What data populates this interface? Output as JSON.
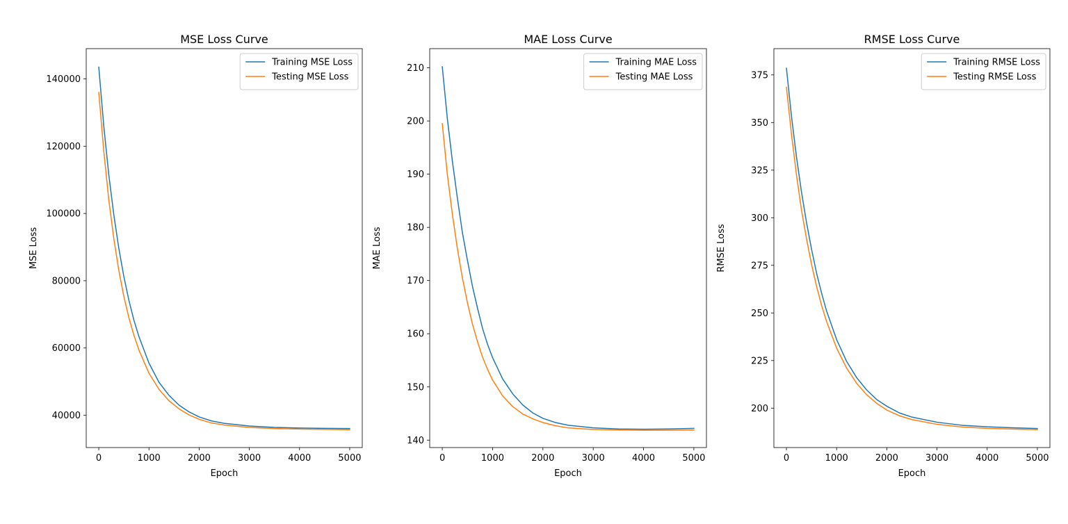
{
  "chart_data": [
    {
      "type": "line",
      "title": "MSE Loss Curve",
      "xlabel": "Epoch",
      "ylabel": "MSE Loss",
      "xlim": [
        -250,
        5250
      ],
      "ylim": [
        30400,
        149000
      ],
      "xticks": [
        0,
        1000,
        2000,
        3000,
        4000,
        5000
      ],
      "yticks": [
        40000,
        60000,
        80000,
        100000,
        120000,
        140000
      ],
      "legend": "top-right",
      "series": [
        {
          "name": "Training MSE Loss",
          "color": "#1f77b4",
          "x": [
            0,
            100,
            200,
            300,
            400,
            500,
            600,
            700,
            800,
            1000,
            1200,
            1400,
            1600,
            1800,
            2000,
            2250,
            2500,
            3000,
            3500,
            4000,
            4500,
            5000
          ],
          "values": [
            143500,
            126000,
            111500,
            99600,
            89600,
            81200,
            74200,
            68300,
            63400,
            55500,
            49800,
            45900,
            43000,
            41000,
            39500,
            38300,
            37600,
            36800,
            36400,
            36200,
            36100,
            36050
          ]
        },
        {
          "name": "Testing MSE Loss",
          "color": "#ff7f0e",
          "x": [
            0,
            100,
            200,
            300,
            400,
            500,
            600,
            700,
            800,
            1000,
            1200,
            1400,
            1600,
            1800,
            2000,
            2250,
            2500,
            3000,
            3500,
            4000,
            4500,
            5000
          ],
          "values": [
            136000,
            118500,
            104000,
            92500,
            83000,
            75300,
            69000,
            63800,
            59400,
            52500,
            47700,
            44300,
            41900,
            40100,
            38800,
            37700,
            37100,
            36400,
            36050,
            35900,
            35800,
            35700
          ]
        }
      ]
    },
    {
      "type": "line",
      "title": "MAE Loss Curve",
      "xlabel": "Epoch",
      "ylabel": "MAE Loss",
      "xlim": [
        -250,
        5250
      ],
      "ylim": [
        138.6,
        213.6
      ],
      "xticks": [
        0,
        1000,
        2000,
        3000,
        4000,
        5000
      ],
      "yticks": [
        140,
        150,
        160,
        170,
        180,
        190,
        200,
        210
      ],
      "legend": "top-right",
      "series": [
        {
          "name": "Training MAE Loss",
          "color": "#1f77b4",
          "x": [
            0,
            100,
            200,
            300,
            400,
            500,
            600,
            700,
            800,
            900,
            1000,
            1200,
            1400,
            1600,
            1800,
            2000,
            2250,
            2500,
            3000,
            3500,
            4000,
            4500,
            5000
          ],
          "values": [
            210.2,
            200.5,
            192.5,
            185.5,
            179.0,
            173.8,
            168.9,
            164.8,
            161.0,
            158.0,
            155.5,
            151.5,
            148.7,
            146.6,
            145.1,
            144.1,
            143.3,
            142.8,
            142.3,
            142.1,
            142.05,
            142.1,
            142.2
          ]
        },
        {
          "name": "Testing MAE Loss",
          "color": "#ff7f0e",
          "x": [
            0,
            100,
            200,
            300,
            400,
            500,
            600,
            700,
            800,
            900,
            1000,
            1200,
            1400,
            1600,
            1800,
            2000,
            2250,
            2500,
            3000,
            3500,
            4000,
            4500,
            5000
          ],
          "values": [
            199.5,
            190.0,
            182.5,
            176.0,
            170.5,
            165.8,
            161.8,
            158.5,
            155.6,
            153.3,
            151.3,
            148.3,
            146.3,
            144.9,
            144.0,
            143.3,
            142.7,
            142.3,
            142.0,
            141.9,
            141.85,
            141.85,
            141.9
          ]
        }
      ]
    },
    {
      "type": "line",
      "title": "RMSE Loss Curve",
      "xlabel": "Epoch",
      "ylabel": "RMSE Loss",
      "xlim": [
        -250,
        5250
      ],
      "ylim": [
        179.3,
        388.8
      ],
      "xticks": [
        0,
        1000,
        2000,
        3000,
        4000,
        5000
      ],
      "yticks": [
        200,
        225,
        250,
        275,
        300,
        325,
        350,
        375
      ],
      "legend": "top-right",
      "series": [
        {
          "name": "Training RMSE Loss",
          "color": "#1f77b4",
          "x": [
            0,
            100,
            200,
            300,
            400,
            500,
            600,
            700,
            800,
            1000,
            1200,
            1400,
            1600,
            1800,
            2000,
            2250,
            2500,
            3000,
            3500,
            4000,
            4500,
            5000
          ],
          "values": [
            378.5,
            353.5,
            332.0,
            313.5,
            297.5,
            283.5,
            271.0,
            260.5,
            251.0,
            236.0,
            224.5,
            216.0,
            209.5,
            204.5,
            201.0,
            197.5,
            195.3,
            192.6,
            191.0,
            190.2,
            189.7,
            189.3
          ]
        },
        {
          "name": "Testing RMSE Loss",
          "color": "#ff7f0e",
          "x": [
            0,
            100,
            200,
            300,
            400,
            500,
            600,
            700,
            800,
            1000,
            1200,
            1400,
            1600,
            1800,
            2000,
            2250,
            2500,
            3000,
            3500,
            4000,
            4500,
            5000
          ],
          "values": [
            368.5,
            344.0,
            322.5,
            304.0,
            289.0,
            275.5,
            264.0,
            254.0,
            245.5,
            231.5,
            221.0,
            213.0,
            207.0,
            202.5,
            199.0,
            196.0,
            194.0,
            191.5,
            190.1,
            189.4,
            189.0,
            188.7
          ]
        }
      ]
    }
  ]
}
